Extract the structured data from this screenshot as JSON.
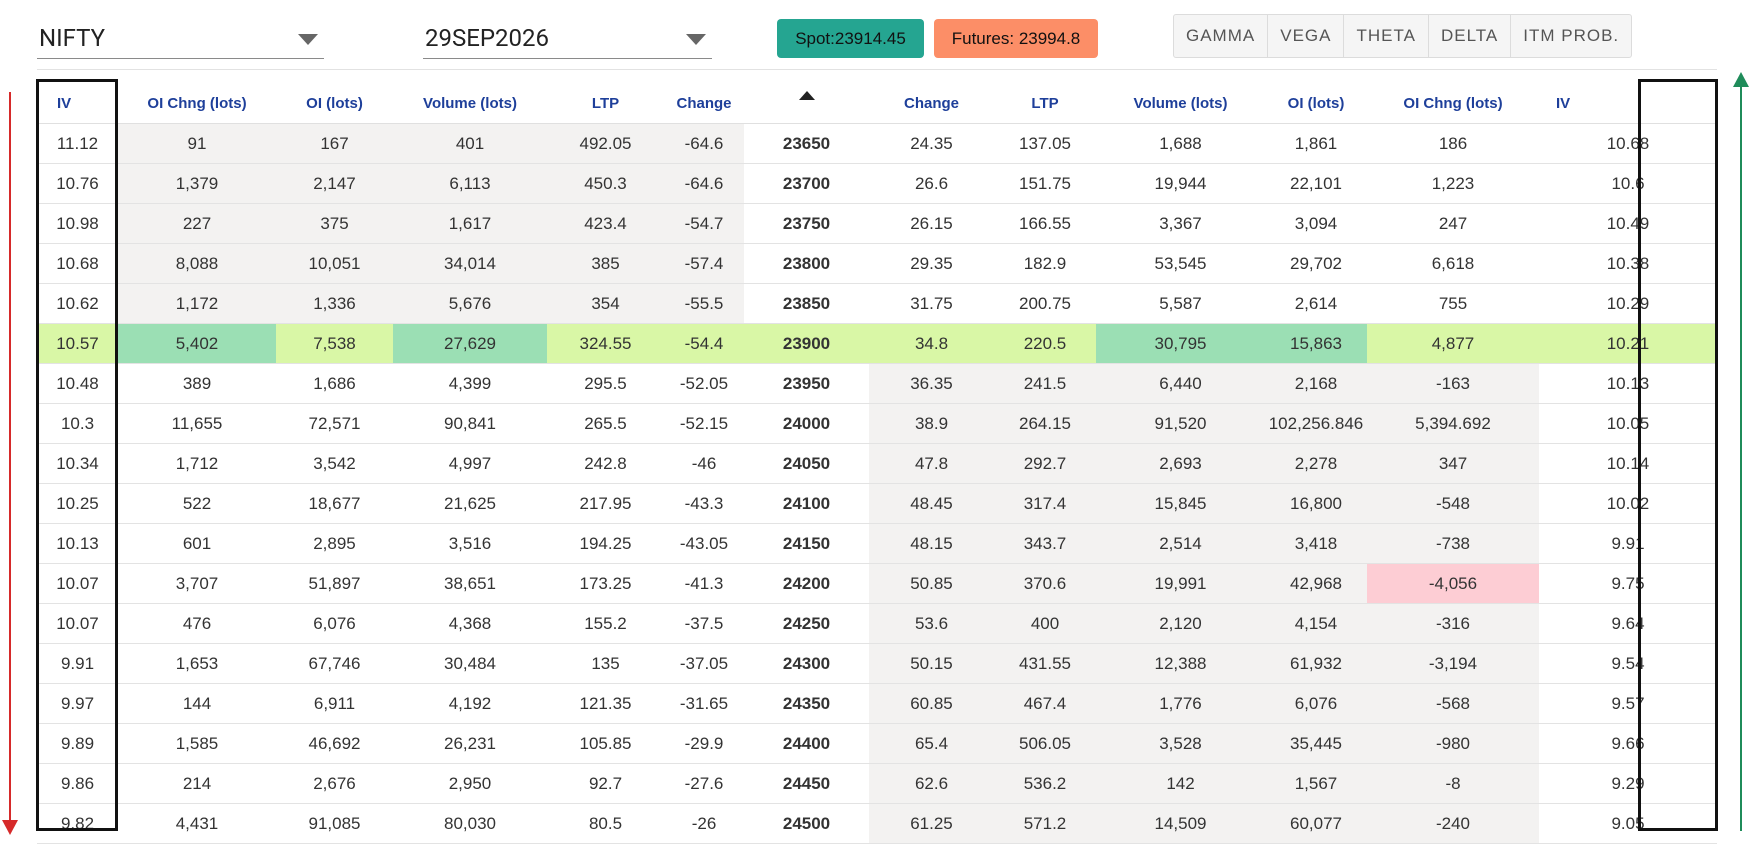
{
  "controls": {
    "symbol": "NIFTY",
    "expiry": "29SEP2026",
    "spot": "Spot:23914.45",
    "futures": "Futures: 23994.8",
    "greeks": [
      "GAMMA",
      "VEGA",
      "THETA",
      "DELTA",
      "ITM PROB."
    ]
  },
  "colors": {
    "spot_badge": "#25a591",
    "futures_badge": "#fc8e67",
    "header_text": "#1e3f9a",
    "negative": "#d63333",
    "positive": "#3a9a3a",
    "atm_row": "#d9f7a6",
    "atm_highlight": "#9bdfb4",
    "alert_cell": "#fdcdd4",
    "arrow_down": "#d62a2a",
    "arrow_up": "#1f8c5a"
  },
  "table": {
    "headers": [
      "IV",
      "OI Chng (lots)",
      "OI (lots)",
      "Volume (lots)",
      "LTP",
      "Change",
      "",
      "Change",
      "LTP",
      "Volume (lots)",
      "OI (lots)",
      "OI Chng (lots)",
      "IV"
    ],
    "rows": [
      [
        "11.12",
        "91",
        "167",
        "401",
        "492.05",
        "-64.6",
        "23650",
        "24.35",
        "137.05",
        "1,688",
        "1,861",
        "186",
        "10.68"
      ],
      [
        "10.76",
        "1,379",
        "2,147",
        "6,113",
        "450.3",
        "-64.6",
        "23700",
        "26.6",
        "151.75",
        "19,944",
        "22,101",
        "1,223",
        "10.6"
      ],
      [
        "10.98",
        "227",
        "375",
        "1,617",
        "423.4",
        "-54.7",
        "23750",
        "26.15",
        "166.55",
        "3,367",
        "3,094",
        "247",
        "10.49"
      ],
      [
        "10.68",
        "8,088",
        "10,051",
        "34,014",
        "385",
        "-57.4",
        "23800",
        "29.35",
        "182.9",
        "53,545",
        "29,702",
        "6,618",
        "10.38"
      ],
      [
        "10.62",
        "1,172",
        "1,336",
        "5,676",
        "354",
        "-55.5",
        "23850",
        "31.75",
        "200.75",
        "5,587",
        "2,614",
        "755",
        "10.29"
      ],
      [
        "10.57",
        "5,402",
        "7,538",
        "27,629",
        "324.55",
        "-54.4",
        "23900",
        "34.8",
        "220.5",
        "30,795",
        "15,863",
        "4,877",
        "10.21"
      ],
      [
        "10.48",
        "389",
        "1,686",
        "4,399",
        "295.5",
        "-52.05",
        "23950",
        "36.35",
        "241.5",
        "6,440",
        "2,168",
        "-163",
        "10.13"
      ],
      [
        "10.3",
        "11,655",
        "72,571",
        "90,841",
        "265.5",
        "-52.15",
        "24000",
        "38.9",
        "264.15",
        "91,520",
        "102,256.846",
        "5,394.692",
        "10.05"
      ],
      [
        "10.34",
        "1,712",
        "3,542",
        "4,997",
        "242.8",
        "-46",
        "24050",
        "47.8",
        "292.7",
        "2,693",
        "2,278",
        "347",
        "10.14"
      ],
      [
        "10.25",
        "522",
        "18,677",
        "21,625",
        "217.95",
        "-43.3",
        "24100",
        "48.45",
        "317.4",
        "15,845",
        "16,800",
        "-548",
        "10.02"
      ],
      [
        "10.13",
        "601",
        "2,895",
        "3,516",
        "194.25",
        "-43.05",
        "24150",
        "48.15",
        "343.7",
        "2,514",
        "3,418",
        "-738",
        "9.91"
      ],
      [
        "10.07",
        "3,707",
        "51,897",
        "38,651",
        "173.25",
        "-41.3",
        "24200",
        "50.85",
        "370.6",
        "19,991",
        "42,968",
        "-4,056",
        "9.75"
      ],
      [
        "10.07",
        "476",
        "6,076",
        "4,368",
        "155.2",
        "-37.5",
        "24250",
        "53.6",
        "400",
        "2,120",
        "4,154",
        "-316",
        "9.64"
      ],
      [
        "9.91",
        "1,653",
        "67,746",
        "30,484",
        "135",
        "-37.05",
        "24300",
        "50.15",
        "431.55",
        "12,388",
        "61,932",
        "-3,194",
        "9.54"
      ],
      [
        "9.97",
        "144",
        "6,911",
        "4,192",
        "121.35",
        "-31.65",
        "24350",
        "60.85",
        "467.4",
        "1,776",
        "6,076",
        "-568",
        "9.57"
      ],
      [
        "9.89",
        "1,585",
        "46,692",
        "26,231",
        "105.85",
        "-29.9",
        "24400",
        "65.4",
        "506.05",
        "3,528",
        "35,445",
        "-980",
        "9.66"
      ],
      [
        "9.86",
        "214",
        "2,676",
        "2,950",
        "92.7",
        "-27.6",
        "24450",
        "62.6",
        "536.2",
        "142",
        "1,567",
        "-8",
        "9.29"
      ],
      [
        "9.82",
        "4,431",
        "91,085",
        "80,030",
        "80.5",
        "-26",
        "24500",
        "61.25",
        "571.2",
        "14,509",
        "60,077",
        "-240",
        "9.05"
      ]
    ]
  }
}
